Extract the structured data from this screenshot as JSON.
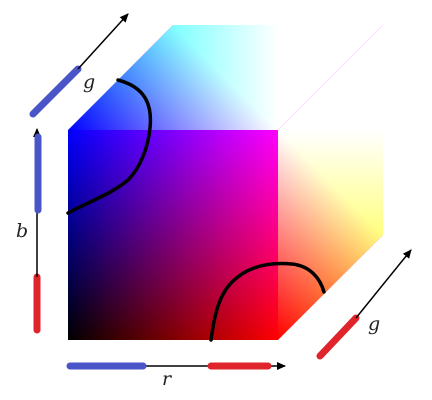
{
  "labels": {
    "r": "r",
    "g_top": "g",
    "g_right": "g",
    "b": "b"
  },
  "colors": {
    "blue_pen": "#4a55c8",
    "red_pen": "#e0242c",
    "curve": "#000000",
    "arrow": "#000000"
  }
}
